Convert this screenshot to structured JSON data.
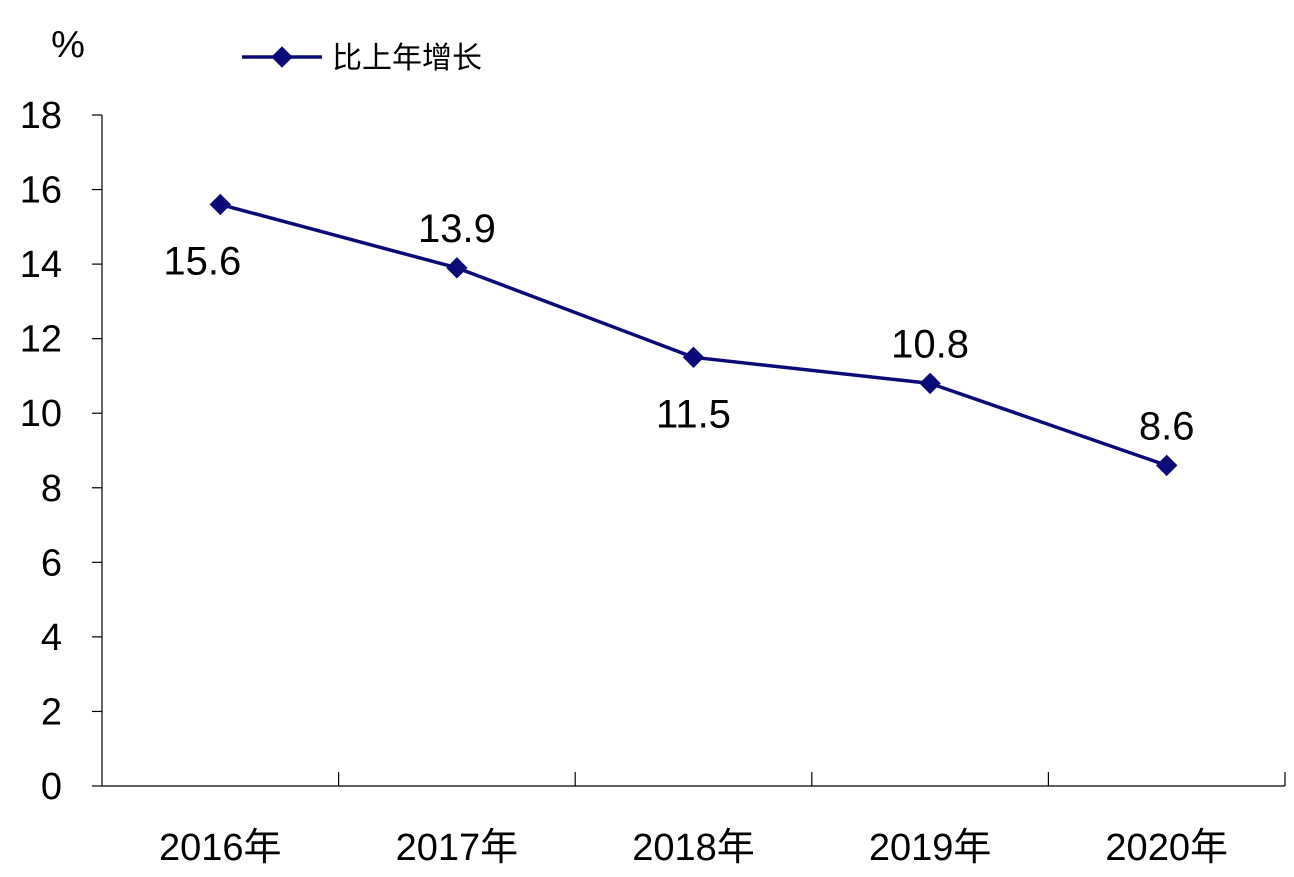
{
  "chart_data": {
    "type": "line",
    "categories": [
      "2016年",
      "2017年",
      "2018年",
      "2019年",
      "2020年"
    ],
    "series": [
      {
        "name": "比上年增长",
        "values": [
          15.6,
          13.9,
          11.5,
          10.8,
          8.6
        ],
        "labels": [
          "15.6",
          "13.9",
          "11.5",
          "10.8",
          "8.6"
        ],
        "color": "#0a0a78"
      }
    ],
    "y_unit": "%",
    "ylim": [
      0,
      18
    ],
    "yticks": [
      0,
      2,
      4,
      6,
      8,
      10,
      12,
      14,
      16,
      18
    ],
    "ytick_labels": [
      "0",
      "2",
      "4",
      "6",
      "8",
      "10",
      "12",
      "14",
      "16",
      "18"
    ],
    "grid": false,
    "legend_position": "top",
    "marker": "diamond"
  }
}
